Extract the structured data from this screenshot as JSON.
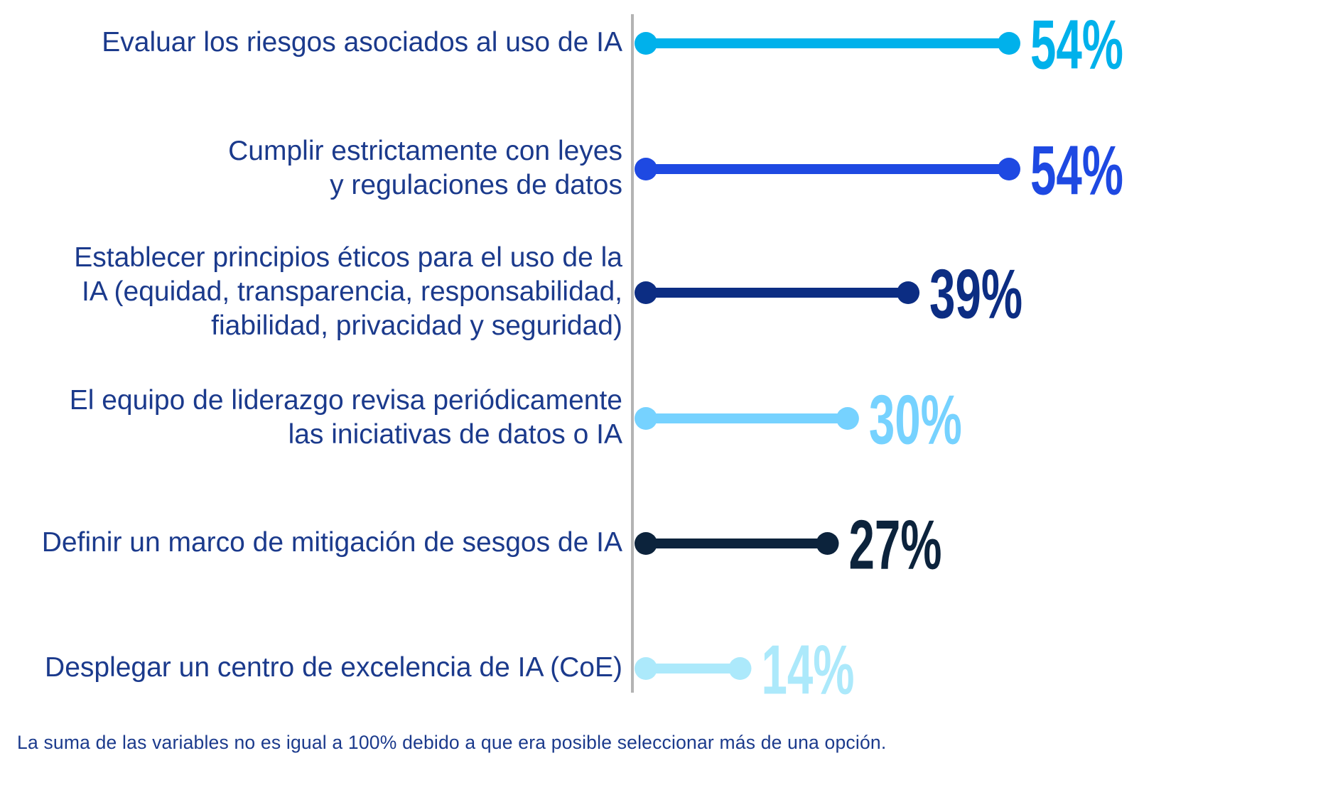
{
  "chart_data": {
    "type": "dumbbell-bar",
    "unit": "%",
    "xlim": [
      0,
      54
    ],
    "bars": [
      {
        "label": [
          "Evaluar los riesgos asociados al uso de IA"
        ],
        "value": 54,
        "display": "54%",
        "color": "#00b1eb"
      },
      {
        "label": [
          "Cumplir estrictamente con leyes",
          "y regulaciones de datos"
        ],
        "value": 54,
        "display": "54%",
        "color": "#1e49e2"
      },
      {
        "label": [
          "Establecer principios éticos para el uso de la",
          "IA (equidad, transparencia, responsabilidad,",
          "fiabilidad, privacidad y seguridad)"
        ],
        "value": 39,
        "display": "39%",
        "color": "#0c2d83"
      },
      {
        "label": [
          "El equipo de liderazgo revisa periódicamente",
          "las iniciativas de datos o IA"
        ],
        "value": 30,
        "display": "30%",
        "color": "#76d2ff"
      },
      {
        "label": [
          "Definir un marco de mitigación de sesgos de IA"
        ],
        "value": 27,
        "display": "27%",
        "color": "#0c233c"
      },
      {
        "label": [
          "Desplegar un centro de excelencia de IA (CoE)"
        ],
        "value": 14,
        "display": "14%",
        "color": "#ace9fb"
      }
    ],
    "axis_color": "#b3b3b3",
    "footnote": "La suma de las variables no es igual a 100% debido a que era posible seleccionar más de una opción."
  }
}
